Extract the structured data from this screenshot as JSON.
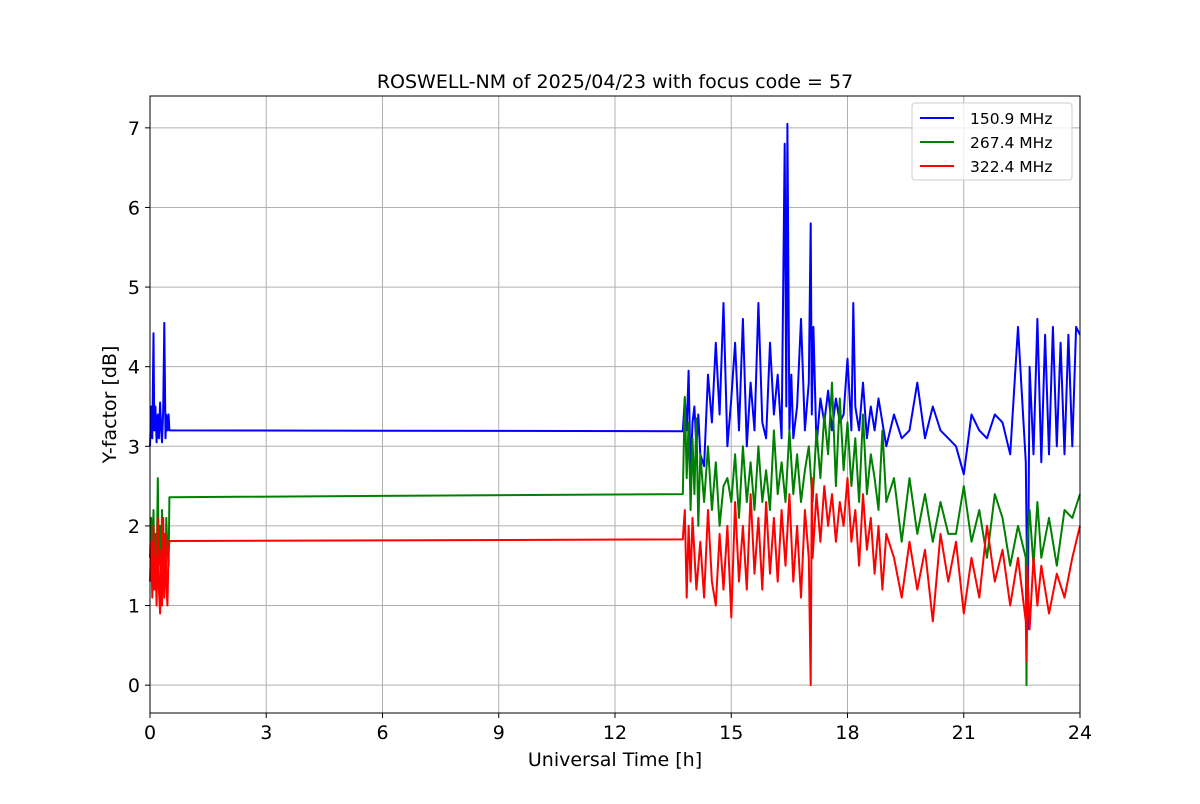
{
  "chart_data": {
    "type": "line",
    "title": "ROSWELL-NM of 2025/04/23 with focus code = 57",
    "xlabel": "Universal Time [h]",
    "ylabel": "Y-factor [dB]",
    "xlim": [
      0,
      24
    ],
    "ylim": [
      -0.35,
      7.4
    ],
    "xticks": [
      0,
      3,
      6,
      9,
      12,
      15,
      18,
      21,
      24
    ],
    "yticks": [
      0,
      1,
      2,
      3,
      4,
      5,
      6,
      7
    ],
    "grid": true,
    "legend_position": "top-right",
    "series": [
      {
        "name": "150.9 MHz",
        "color": "#0000ff",
        "x": [
          0.0,
          0.03,
          0.06,
          0.09,
          0.11,
          0.14,
          0.17,
          0.2,
          0.23,
          0.26,
          0.29,
          0.31,
          0.34,
          0.37,
          0.4,
          0.42,
          0.45,
          0.48,
          0.5,
          0.52,
          13.75,
          13.8,
          13.85,
          13.9,
          13.95,
          14.0,
          14.05,
          14.1,
          14.15,
          14.2,
          14.3,
          14.4,
          14.5,
          14.6,
          14.7,
          14.8,
          14.9,
          15.0,
          15.1,
          15.2,
          15.3,
          15.4,
          15.5,
          15.6,
          15.7,
          15.8,
          15.9,
          16.0,
          16.1,
          16.2,
          16.3,
          16.38,
          16.42,
          16.45,
          16.48,
          16.5,
          16.55,
          16.6,
          16.7,
          16.8,
          16.9,
          17.0,
          17.05,
          17.08,
          17.12,
          17.2,
          17.3,
          17.4,
          17.5,
          17.6,
          17.7,
          17.8,
          17.9,
          18.0,
          18.1,
          18.15,
          18.2,
          18.3,
          18.4,
          18.5,
          18.6,
          18.7,
          18.8,
          18.9,
          19.0,
          19.2,
          19.4,
          19.6,
          19.8,
          20.0,
          20.2,
          20.4,
          20.6,
          20.8,
          21.0,
          21.2,
          21.4,
          21.6,
          21.8,
          22.0,
          22.2,
          22.4,
          22.6,
          22.65,
          22.7,
          22.8,
          22.9,
          23.0,
          23.1,
          23.2,
          23.3,
          23.4,
          23.5,
          23.6,
          23.7,
          23.8,
          23.9,
          24.0
        ],
        "y": [
          3.0,
          3.5,
          3.1,
          4.42,
          3.2,
          3.5,
          3.05,
          3.4,
          3.1,
          3.55,
          3.2,
          3.05,
          3.45,
          4.55,
          3.1,
          3.4,
          3.2,
          3.4,
          3.2,
          3.2,
          3.19,
          3.6,
          3.2,
          3.95,
          2.6,
          3.3,
          3.5,
          3.0,
          3.4,
          2.9,
          2.75,
          3.9,
          3.3,
          4.3,
          3.4,
          4.8,
          3.0,
          3.6,
          4.3,
          3.2,
          4.6,
          3.0,
          3.8,
          3.2,
          4.8,
          3.3,
          3.1,
          4.3,
          3.4,
          3.9,
          3.1,
          6.8,
          3.5,
          7.05,
          4.8,
          3.2,
          3.9,
          3.1,
          3.5,
          4.6,
          3.2,
          3.8,
          5.8,
          3.4,
          4.5,
          3.0,
          3.6,
          3.3,
          3.7,
          3.2,
          3.6,
          3.3,
          3.4,
          4.1,
          3.2,
          4.8,
          3.5,
          3.2,
          3.8,
          3.1,
          3.5,
          3.2,
          3.6,
          3.3,
          3.0,
          3.4,
          3.1,
          3.2,
          3.8,
          3.1,
          3.5,
          3.2,
          3.1,
          3.0,
          2.65,
          3.4,
          3.2,
          3.1,
          3.4,
          3.3,
          2.9,
          4.5,
          2.8,
          0.7,
          4.0,
          2.9,
          4.6,
          2.8,
          4.4,
          2.9,
          4.5,
          3.0,
          4.3,
          2.9,
          4.4,
          3.0,
          4.5,
          4.4
        ]
      },
      {
        "name": "267.4 MHz",
        "color": "#008000",
        "x": [
          0.0,
          0.03,
          0.06,
          0.09,
          0.11,
          0.14,
          0.17,
          0.2,
          0.23,
          0.26,
          0.29,
          0.31,
          0.34,
          0.37,
          0.4,
          0.42,
          0.45,
          0.48,
          0.5,
          0.52,
          13.75,
          13.8,
          13.85,
          13.9,
          13.95,
          14.0,
          14.05,
          14.1,
          14.15,
          14.2,
          14.3,
          14.4,
          14.5,
          14.6,
          14.7,
          14.8,
          14.9,
          15.0,
          15.1,
          15.2,
          15.3,
          15.4,
          15.5,
          15.6,
          15.7,
          15.8,
          15.9,
          16.0,
          16.1,
          16.2,
          16.3,
          16.4,
          16.5,
          16.6,
          16.7,
          16.8,
          16.9,
          17.0,
          17.1,
          17.2,
          17.3,
          17.4,
          17.5,
          17.6,
          17.7,
          17.8,
          17.9,
          18.0,
          18.1,
          18.2,
          18.3,
          18.4,
          18.5,
          18.6,
          18.7,
          18.8,
          18.9,
          19.0,
          19.2,
          19.4,
          19.6,
          19.8,
          20.0,
          20.2,
          20.4,
          20.6,
          20.8,
          21.0,
          21.2,
          21.4,
          21.6,
          21.8,
          22.0,
          22.2,
          22.4,
          22.6,
          22.62,
          22.64,
          22.7,
          22.8,
          22.9,
          23.0,
          23.2,
          23.4,
          23.6,
          23.8,
          24.0
        ],
        "y": [
          1.6,
          2.1,
          1.5,
          2.2,
          1.6,
          1.9,
          1.4,
          2.6,
          1.5,
          2.0,
          1.6,
          2.2,
          1.5,
          1.9,
          1.4,
          2.1,
          1.7,
          1.5,
          2.36,
          2.36,
          2.4,
          3.62,
          2.6,
          3.3,
          2.2,
          3.1,
          2.4,
          3.35,
          2.0,
          2.9,
          2.3,
          3.0,
          2.2,
          2.8,
          2.0,
          2.5,
          2.6,
          2.3,
          2.9,
          2.1,
          3.0,
          2.3,
          2.8,
          2.2,
          3.0,
          2.3,
          2.7,
          2.2,
          3.2,
          2.4,
          2.8,
          2.3,
          3.2,
          2.4,
          2.9,
          2.3,
          2.7,
          3.0,
          2.3,
          3.2,
          2.6,
          3.4,
          2.9,
          3.8,
          2.5,
          3.6,
          2.7,
          3.3,
          2.5,
          3.1,
          2.3,
          3.4,
          2.4,
          2.9,
          2.6,
          2.2,
          3.2,
          2.3,
          2.6,
          1.8,
          2.6,
          1.9,
          2.4,
          1.8,
          2.3,
          1.9,
          1.9,
          2.5,
          1.8,
          2.2,
          1.6,
          2.4,
          2.1,
          1.5,
          2.0,
          1.6,
          0.0,
          1.8,
          2.2,
          1.5,
          2.3,
          1.6,
          2.1,
          1.5,
          2.2,
          2.1,
          2.4
        ]
      },
      {
        "name": "322.4 MHz",
        "color": "#ff0000",
        "x": [
          0.0,
          0.03,
          0.06,
          0.09,
          0.11,
          0.14,
          0.17,
          0.2,
          0.23,
          0.26,
          0.29,
          0.31,
          0.34,
          0.37,
          0.4,
          0.42,
          0.45,
          0.48,
          0.5,
          0.52,
          13.75,
          13.8,
          13.85,
          13.9,
          13.95,
          14.0,
          14.1,
          14.2,
          14.3,
          14.4,
          14.5,
          14.6,
          14.7,
          14.8,
          14.9,
          15.0,
          15.1,
          15.2,
          15.3,
          15.4,
          15.5,
          15.6,
          15.7,
          15.8,
          15.9,
          16.0,
          16.1,
          16.2,
          16.3,
          16.4,
          16.5,
          16.6,
          16.7,
          16.8,
          16.9,
          17.0,
          17.05,
          17.08,
          17.1,
          17.2,
          17.3,
          17.4,
          17.5,
          17.6,
          17.7,
          17.8,
          17.9,
          18.0,
          18.1,
          18.2,
          18.3,
          18.4,
          18.5,
          18.6,
          18.7,
          18.8,
          18.9,
          19.0,
          19.2,
          19.4,
          19.6,
          19.8,
          20.0,
          20.2,
          20.4,
          20.6,
          20.8,
          21.0,
          21.2,
          21.4,
          21.6,
          21.8,
          22.0,
          22.2,
          22.4,
          22.6,
          22.62,
          22.64,
          22.7,
          22.8,
          22.9,
          23.0,
          23.2,
          23.4,
          23.6,
          23.8,
          24.0
        ],
        "y": [
          1.3,
          1.8,
          1.1,
          2.0,
          1.2,
          1.6,
          1.0,
          2.1,
          1.2,
          0.9,
          1.7,
          1.0,
          2.1,
          1.1,
          1.9,
          1.3,
          1.0,
          1.7,
          1.81,
          1.81,
          1.83,
          2.2,
          1.1,
          2.0,
          1.3,
          2.1,
          1.2,
          1.8,
          1.1,
          2.2,
          1.3,
          1.0,
          1.9,
          1.2,
          2.0,
          0.85,
          2.3,
          1.3,
          2.0,
          1.2,
          2.4,
          1.4,
          2.1,
          1.2,
          2.3,
          1.4,
          2.1,
          1.3,
          2.2,
          1.5,
          2.4,
          1.3,
          2.0,
          1.1,
          2.2,
          1.6,
          0.0,
          2.6,
          1.6,
          2.4,
          1.8,
          2.5,
          2.0,
          2.4,
          1.8,
          2.3,
          2.0,
          2.6,
          1.8,
          2.2,
          1.5,
          2.4,
          1.7,
          2.1,
          1.4,
          2.0,
          1.2,
          1.9,
          1.6,
          1.1,
          1.8,
          1.2,
          1.7,
          0.8,
          1.9,
          1.3,
          1.8,
          0.9,
          1.6,
          1.1,
          2.0,
          1.3,
          1.7,
          1.0,
          1.6,
          0.8,
          0.3,
          1.5,
          0.7,
          1.6,
          1.0,
          1.5,
          0.9,
          1.4,
          1.1,
          1.6,
          2.0
        ]
      }
    ]
  }
}
